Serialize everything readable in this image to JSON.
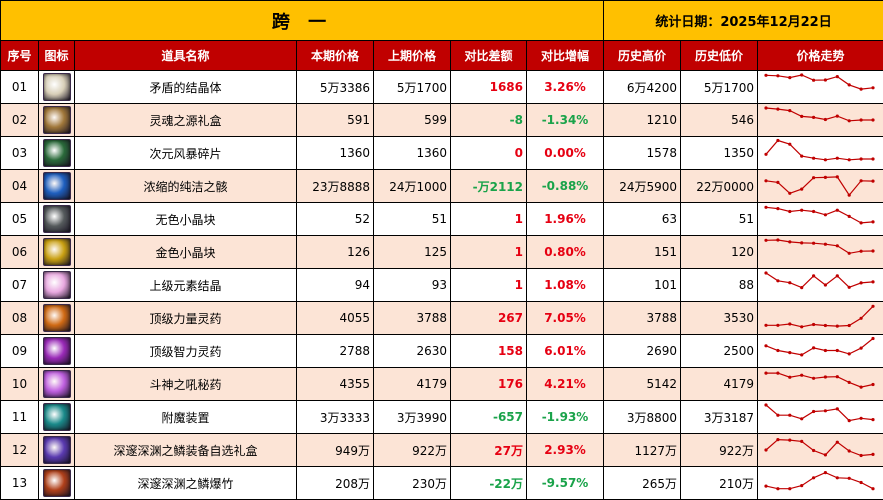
{
  "title": {
    "main": "跨 一",
    "date": "统计日期：2025年12月22日"
  },
  "headers": {
    "idx": "序号",
    "icon": "图标",
    "name": "道具名称",
    "cur": "本期价格",
    "prev": "上期价格",
    "diff": "对比差额",
    "pct": "对比增幅",
    "high": "历史高价",
    "low": "历史低价",
    "trend": "价格走势"
  },
  "colors": {
    "title_bg": "#ffc000",
    "header_bg": "#c00000",
    "alt_row": "#fce4d6",
    "up": "#e60012",
    "down": "#1aa34a",
    "spark": "#c00000"
  },
  "rows": [
    {
      "idx": "01",
      "icon": "crystal-white-icon",
      "icon_color": "#d8cfb8",
      "name": "矛盾的结晶体",
      "cur": "5万3386",
      "prev": "5万1700",
      "diff": "1686",
      "pct": "3.26%",
      "dir": "up",
      "high": "6万4200",
      "low": "5万1700",
      "trend": [
        9.5,
        9.3,
        8.6,
        9.6,
        7.6,
        7.7,
        9.0,
        5.8,
        4.2,
        4.7
      ]
    },
    {
      "idx": "02",
      "icon": "soul-gift-box-icon",
      "icon_color": "#a0773a",
      "name": "灵魂之源礼盒",
      "cur": "591",
      "prev": "599",
      "diff": "-8",
      "pct": "-1.34%",
      "dir": "down",
      "high": "1210",
      "low": "546",
      "trend": [
        9.6,
        9.2,
        8.6,
        6.4,
        6.0,
        5.2,
        6.5,
        4.7,
        5.0,
        5.0
      ]
    },
    {
      "idx": "03",
      "icon": "dimension-shard-icon",
      "icon_color": "#2a6a3a",
      "name": "次元风暴碎片",
      "cur": "1360",
      "prev": "1360",
      "diff": "0",
      "pct": "0.00%",
      "dir": "up",
      "high": "1578",
      "low": "1350",
      "trend": [
        4.5,
        9.8,
        8.4,
        3.8,
        3.0,
        2.4,
        3.0,
        2.4,
        2.7,
        2.7
      ]
    },
    {
      "idx": "04",
      "icon": "pure-remains-icon",
      "icon_color": "#1e5fbf",
      "name": "浓缩的纯洁之骸",
      "cur": "23万8888",
      "prev": "24万1000",
      "diff": "-万2112",
      "pct": "-0.88%",
      "dir": "down",
      "high": "24万5900",
      "low": "22万0000",
      "trend": [
        7.0,
        6.4,
        2.2,
        3.8,
        8.2,
        8.3,
        8.5,
        1.5,
        7.0,
        6.9
      ]
    },
    {
      "idx": "05",
      "icon": "colorless-cube-icon",
      "icon_color": "#555a5c",
      "name": "无色小晶块",
      "cur": "52",
      "prev": "51",
      "diff": "1",
      "pct": "1.96%",
      "dir": "up",
      "high": "63",
      "low": "51",
      "trend": [
        9.5,
        9.0,
        7.9,
        8.4,
        7.9,
        6.6,
        8.4,
        6.0,
        3.5,
        3.9
      ]
    },
    {
      "idx": "06",
      "icon": "gold-cube-icon",
      "icon_color": "#c9a012",
      "name": "金色小晶块",
      "cur": "126",
      "prev": "125",
      "diff": "1",
      "pct": "0.80%",
      "dir": "up",
      "high": "151",
      "low": "120",
      "trend": [
        9.5,
        9.6,
        8.9,
        8.5,
        8.4,
        8.0,
        7.4,
        4.5,
        5.3,
        5.4
      ]
    },
    {
      "idx": "07",
      "icon": "element-crystal-icon",
      "icon_color": "#e8a8e0",
      "name": "上级元素结晶",
      "cur": "94",
      "prev": "93",
      "diff": "1",
      "pct": "1.08%",
      "dir": "up",
      "high": "101",
      "low": "88",
      "trend": [
        9.6,
        6.6,
        5.9,
        4.0,
        8.5,
        5.0,
        8.5,
        4.1,
        5.8,
        6.2
      ]
    },
    {
      "idx": "08",
      "icon": "strength-potion-icon",
      "icon_color": "#d06a14",
      "name": "顶级力量灵药",
      "cur": "4055",
      "prev": "3788",
      "diff": "267",
      "pct": "7.05%",
      "dir": "up",
      "high": "3788",
      "low": "3530",
      "trend": [
        2.2,
        2.2,
        2.7,
        1.6,
        2.5,
        2.1,
        1.9,
        2.1,
        4.9,
        9.5
      ]
    },
    {
      "idx": "09",
      "icon": "intellect-potion-icon",
      "icon_color": "#9a2ab8",
      "name": "顶级智力灵药",
      "cur": "2788",
      "prev": "2630",
      "diff": "158",
      "pct": "6.01%",
      "dir": "up",
      "high": "2690",
      "low": "2500",
      "trend": [
        7.0,
        5.2,
        4.4,
        3.5,
        6.2,
        5.2,
        5.2,
        3.9,
        6.1,
        9.8
      ]
    },
    {
      "idx": "10",
      "icon": "warrior-elixir-icon",
      "icon_color": "#c060e0",
      "name": "斗神之吼秘药",
      "cur": "4355",
      "prev": "4179",
      "diff": "176",
      "pct": "4.21%",
      "dir": "up",
      "high": "5142",
      "low": "4179",
      "trend": [
        9.2,
        9.2,
        7.6,
        8.4,
        7.2,
        7.7,
        7.8,
        5.6,
        3.8,
        4.8
      ]
    },
    {
      "idx": "11",
      "icon": "enchant-device-icon",
      "icon_color": "#1a8a8a",
      "name": "附魔装置",
      "cur": "3万3333",
      "prev": "3万3990",
      "diff": "-657",
      "pct": "-1.93%",
      "dir": "down",
      "high": "3万8800",
      "low": "3万3187",
      "trend": [
        9.6,
        5.7,
        5.7,
        4.3,
        7.1,
        7.4,
        8.1,
        3.6,
        4.5,
        4.0
      ]
    },
    {
      "idx": "12",
      "icon": "abyss-gift-box-icon",
      "icon_color": "#5a3ab0",
      "name": "深邃深渊之鳞装备自选礼盒",
      "cur": "949万",
      "prev": "922万",
      "diff": "27万",
      "pct": "2.93%",
      "dir": "up",
      "high": "1127万",
      "low": "922万",
      "trend": [
        5.0,
        9.0,
        8.8,
        8.3,
        4.8,
        3.1,
        8.0,
        4.6,
        2.9,
        3.3
      ]
    },
    {
      "idx": "13",
      "icon": "abyss-firecracker-icon",
      "icon_color": "#b0401a",
      "name": "深邃深渊之鳞爆竹",
      "cur": "208万",
      "prev": "230万",
      "diff": "-22万",
      "pct": "-9.57%",
      "dir": "down",
      "high": "265万",
      "low": "210万",
      "trend": [
        3.8,
        2.8,
        2.8,
        4.0,
        7.0,
        9.0,
        7.0,
        6.8,
        5.2,
        2.8
      ]
    }
  ]
}
